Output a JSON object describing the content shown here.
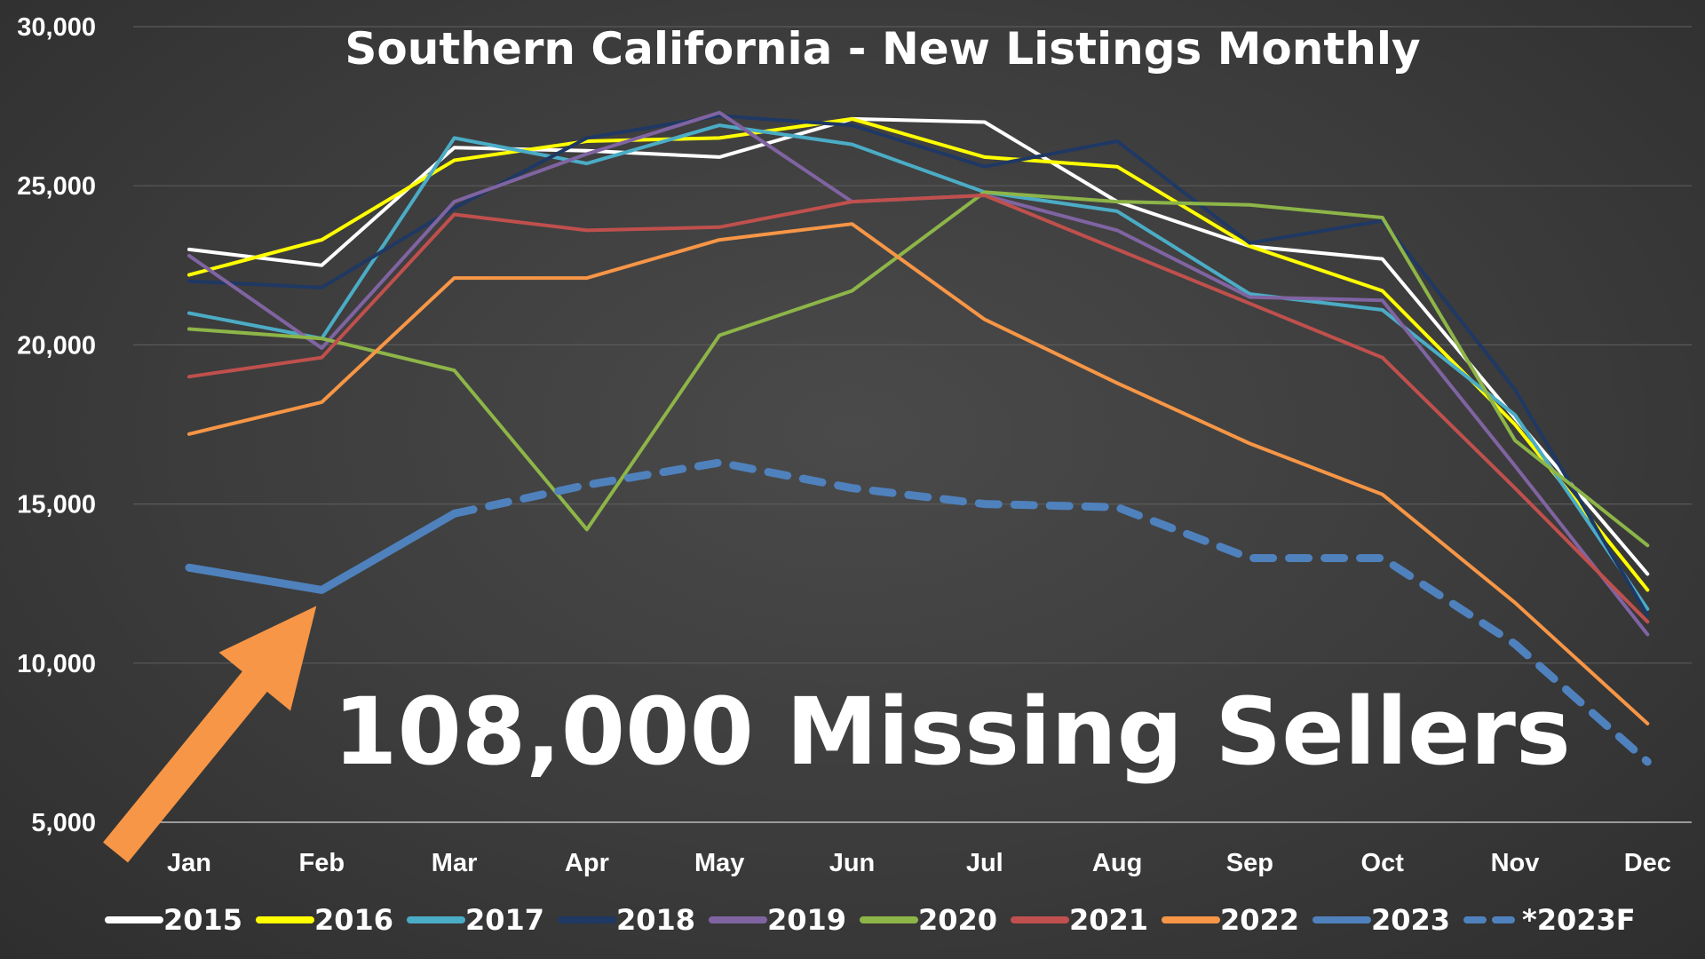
{
  "chart_data": {
    "type": "line",
    "title": "Southern California - New Listings Monthly",
    "xlabel": "",
    "ylabel": "",
    "categories": [
      "Jan",
      "Feb",
      "Mar",
      "Apr",
      "May",
      "Jun",
      "Jul",
      "Aug",
      "Sep",
      "Oct",
      "Nov",
      "Dec"
    ],
    "ylim": [
      5000,
      30000
    ],
    "yticks": [
      "5,000",
      "10,000",
      "15,000",
      "20,000",
      "25,000",
      "30,000"
    ],
    "ytick_values": [
      5000,
      10000,
      15000,
      20000,
      25000,
      30000
    ],
    "grid": true,
    "legend_position": "bottom",
    "series": [
      {
        "name": "2015",
        "color": "#ffffff",
        "style": "solid",
        "width": 4,
        "values": [
          23000,
          22500,
          26200,
          26100,
          25900,
          27100,
          27000,
          24500,
          23100,
          22700,
          17700,
          12800
        ]
      },
      {
        "name": "2016",
        "color": "#ffff00",
        "style": "solid",
        "width": 4,
        "values": [
          22200,
          23300,
          25800,
          26400,
          26500,
          27100,
          25900,
          25600,
          23100,
          21700,
          17500,
          12300
        ]
      },
      {
        "name": "2017",
        "color": "#4bacc6",
        "style": "solid",
        "width": 4,
        "values": [
          21000,
          20200,
          26500,
          25700,
          26900,
          26300,
          24800,
          24200,
          21600,
          21100,
          17800,
          11700
        ]
      },
      {
        "name": "2018",
        "color": "#1f3864",
        "style": "solid",
        "width": 4,
        "values": [
          22000,
          21800,
          24300,
          26500,
          27200,
          26900,
          25600,
          26400,
          23200,
          23900,
          18600,
          11500
        ]
      },
      {
        "name": "2019",
        "color": "#8064a2",
        "style": "solid",
        "width": 4,
        "values": [
          22800,
          19900,
          24500,
          26000,
          27300,
          24500,
          24700,
          23600,
          21500,
          21400,
          16200,
          10900
        ]
      },
      {
        "name": "2020",
        "color": "#8db548",
        "style": "solid",
        "width": 4,
        "values": [
          20500,
          20200,
          19200,
          14200,
          20300,
          21700,
          24800,
          24500,
          24400,
          24000,
          17000,
          13700
        ]
      },
      {
        "name": "2021",
        "color": "#c0504d",
        "style": "solid",
        "width": 4,
        "values": [
          19000,
          19600,
          24100,
          23600,
          23700,
          24500,
          24700,
          23000,
          21300,
          19600,
          15500,
          11300
        ]
      },
      {
        "name": "2022",
        "color": "#f79646",
        "style": "solid",
        "width": 4,
        "values": [
          17200,
          18200,
          22100,
          22100,
          23300,
          23800,
          20800,
          18800,
          16900,
          15300,
          11900,
          8100
        ]
      },
      {
        "name": "2023",
        "color": "#4f81bd",
        "style": "solid",
        "width": 9,
        "values": [
          13000,
          12300,
          14700,
          null,
          null,
          null,
          null,
          null,
          null,
          null,
          null,
          null
        ]
      },
      {
        "name": "*2023F",
        "color": "#4f81bd",
        "style": "dashed",
        "width": 9,
        "values": [
          null,
          null,
          14700,
          15600,
          16300,
          15500,
          15000,
          14900,
          13300,
          13300,
          10600,
          6900
        ]
      }
    ],
    "annotations": [
      {
        "text": "108,000 Missing Sellers",
        "points_to": "Feb"
      }
    ]
  },
  "colors": {
    "background": "#3c3c3c",
    "gridline": "#5a5a5a",
    "arrow": "#f79646"
  }
}
